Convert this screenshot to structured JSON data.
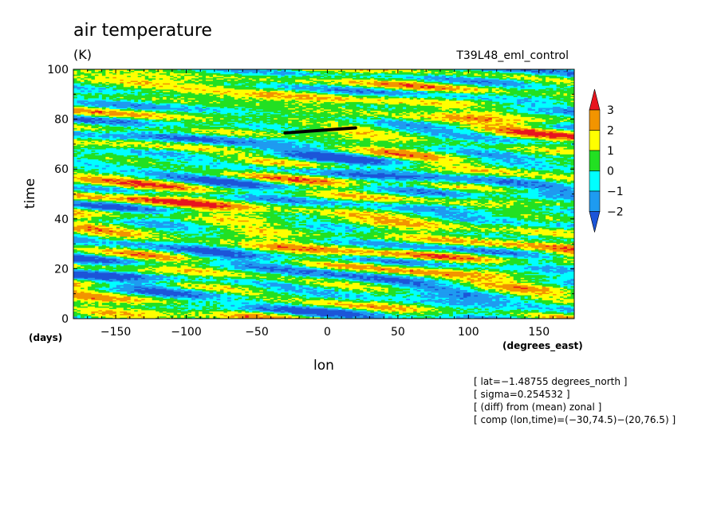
{
  "chart_data": {
    "type": "heatmap",
    "title": "air temperature",
    "units": "(K)",
    "run_label": "T39L48_eml_control",
    "xlabel": "lon",
    "ylabel": "time",
    "x_units": "(degrees_east)",
    "y_units": "(days)",
    "xlim": [
      -180,
      175
    ],
    "ylim": [
      0,
      100
    ],
    "x_ticks": [
      -150,
      -100,
      -50,
      0,
      50,
      100,
      150
    ],
    "y_ticks": [
      0,
      20,
      40,
      60,
      80,
      100
    ],
    "colorbar": {
      "labels": [
        "3",
        "2",
        "1",
        "0",
        "−1",
        "−2"
      ],
      "levels": [
        {
          "range": "> 3",
          "color": "#e8151f"
        },
        {
          "range": "2 to 3",
          "color": "#f29400"
        },
        {
          "range": "1 to 2",
          "color": "#ffff00"
        },
        {
          "range": "0 to 1",
          "color": "#22e022"
        },
        {
          "range": "-1 to 0",
          "color": "#00ffff"
        },
        {
          "range": "-2 to -1",
          "color": "#1e9bf0"
        },
        {
          "range": "< -2",
          "color": "#1c55d8"
        }
      ]
    },
    "composite_segment": {
      "lon": [
        -30,
        20
      ],
      "time": [
        74.5,
        76.5
      ]
    },
    "info_lines": [
      "[ lat=−1.48755 degrees_north ]",
      "[ sigma=0.254532 ]",
      "[ (diff) from (mean) zonal ]",
      "[ comp (lon,time)=(−30,74.5)−(20,76.5) ]"
    ]
  }
}
